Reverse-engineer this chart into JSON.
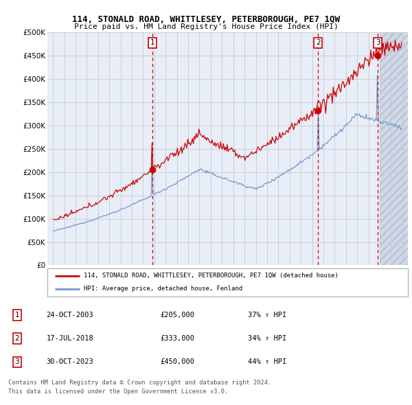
{
  "title": "114, STONALD ROAD, WHITTLESEY, PETERBOROUGH, PE7 1QW",
  "subtitle": "Price paid vs. HM Land Registry's House Price Index (HPI)",
  "red_label": "114, STONALD ROAD, WHITTLESEY, PETERBOROUGH, PE7 1QW (detached house)",
  "blue_label": "HPI: Average price, detached house, Fenland",
  "sales": [
    {
      "num": 1,
      "date": "24-OCT-2003",
      "price": 205000,
      "pct": "37%",
      "x": 2003.81
    },
    {
      "num": 2,
      "date": "17-JUL-2018",
      "price": 333000,
      "pct": "34%",
      "x": 2018.54
    },
    {
      "num": 3,
      "date": "30-OCT-2023",
      "price": 450000,
      "pct": "44%",
      "x": 2023.83
    }
  ],
  "footer1": "Contains HM Land Registry data © Crown copyright and database right 2024.",
  "footer2": "This data is licensed under the Open Government Licence v3.0.",
  "ylim": [
    0,
    500000
  ],
  "xlim": [
    1994.5,
    2026.5
  ],
  "yticks": [
    0,
    50000,
    100000,
    150000,
    200000,
    250000,
    300000,
    350000,
    400000,
    450000,
    500000
  ],
  "ytick_labels": [
    "£0",
    "£50K",
    "£100K",
    "£150K",
    "£200K",
    "£250K",
    "£300K",
    "£350K",
    "£400K",
    "£450K",
    "£500K"
  ],
  "xticks": [
    1995,
    1996,
    1997,
    1998,
    1999,
    2000,
    2001,
    2002,
    2003,
    2004,
    2005,
    2006,
    2007,
    2008,
    2009,
    2010,
    2011,
    2012,
    2013,
    2014,
    2015,
    2016,
    2017,
    2018,
    2019,
    2020,
    2021,
    2022,
    2023,
    2024,
    2025,
    2026
  ],
  "bg_color": "#E8EEF8",
  "hatch_color": "#D0D8E8",
  "grid_color": "#C8C8C8",
  "red_color": "#CC0000",
  "blue_color": "#7799CC",
  "marker_box_color": "#CC0000",
  "hatch_start": 2024.0
}
